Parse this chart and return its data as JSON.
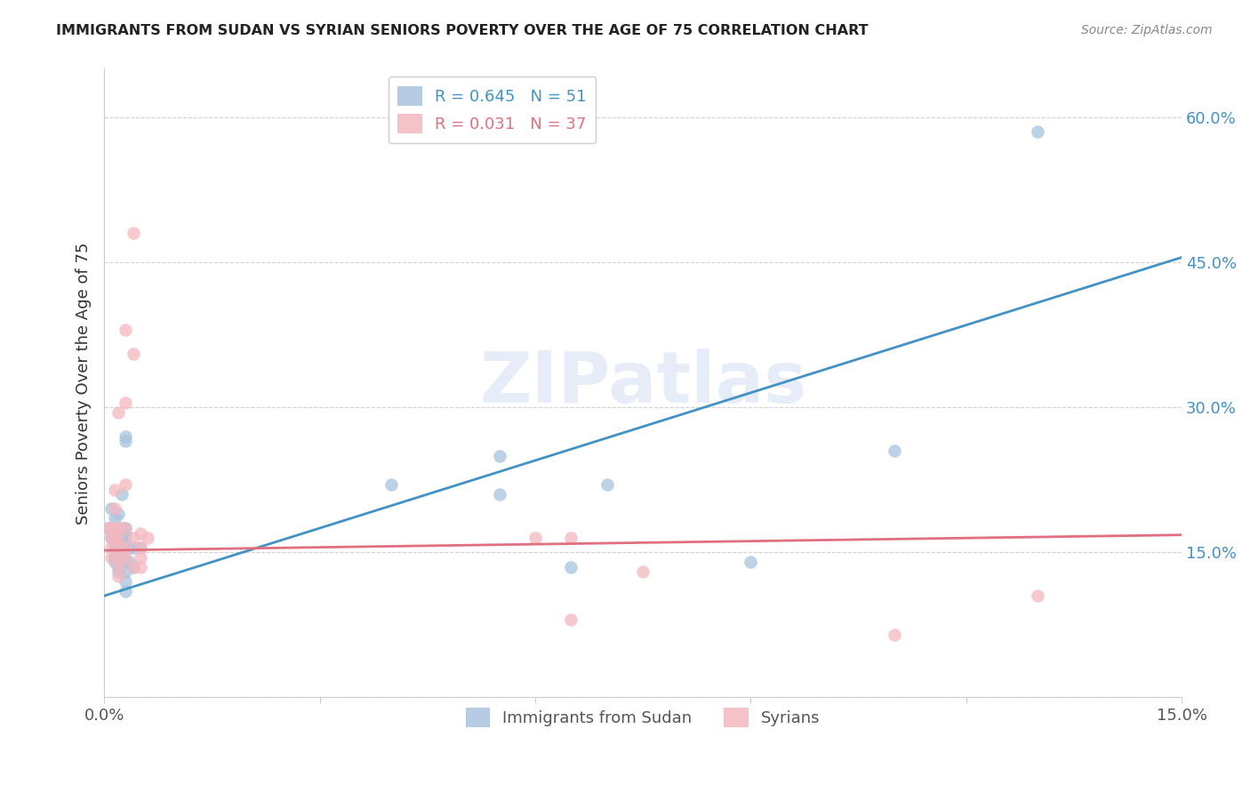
{
  "title": "IMMIGRANTS FROM SUDAN VS SYRIAN SENIORS POVERTY OVER THE AGE OF 75 CORRELATION CHART",
  "source": "Source: ZipAtlas.com",
  "ylabel": "Seniors Poverty Over the Age of 75",
  "x_min": 0.0,
  "x_max": 0.15,
  "y_min": 0.0,
  "y_max": 0.65,
  "yticks": [
    0.0,
    0.15,
    0.3,
    0.45,
    0.6
  ],
  "ytick_labels": [
    "",
    "15.0%",
    "30.0%",
    "45.0%",
    "60.0%"
  ],
  "xticks": [
    0.0,
    0.03,
    0.06,
    0.09,
    0.12,
    0.15
  ],
  "xtick_labels": [
    "0.0%",
    "",
    "",
    "",
    "",
    "15.0%"
  ],
  "watermark_text": "ZIPatlas",
  "sudan_color": "#a8c4e0",
  "syria_color": "#f4b8c0",
  "sudan_line_color": "#4292c6",
  "syria_line_color": "#e07080",
  "sudan_line": {
    "x0": 0.0,
    "y0": 0.105,
    "x1": 0.15,
    "y1": 0.455
  },
  "syria_line": {
    "x0": 0.0,
    "y0": 0.152,
    "x1": 0.15,
    "y1": 0.168
  },
  "sudan_points": [
    [
      0.0005,
      0.175
    ],
    [
      0.001,
      0.195
    ],
    [
      0.001,
      0.175
    ],
    [
      0.001,
      0.165
    ],
    [
      0.0015,
      0.185
    ],
    [
      0.0015,
      0.175
    ],
    [
      0.0015,
      0.165
    ],
    [
      0.0015,
      0.16
    ],
    [
      0.0015,
      0.155
    ],
    [
      0.0015,
      0.15
    ],
    [
      0.0015,
      0.145
    ],
    [
      0.0015,
      0.14
    ],
    [
      0.002,
      0.19
    ],
    [
      0.002,
      0.175
    ],
    [
      0.002,
      0.17
    ],
    [
      0.002,
      0.165
    ],
    [
      0.002,
      0.16
    ],
    [
      0.002,
      0.155
    ],
    [
      0.002,
      0.15
    ],
    [
      0.002,
      0.145
    ],
    [
      0.002,
      0.135
    ],
    [
      0.002,
      0.13
    ],
    [
      0.0025,
      0.21
    ],
    [
      0.0025,
      0.175
    ],
    [
      0.0025,
      0.165
    ],
    [
      0.0025,
      0.155
    ],
    [
      0.0025,
      0.15
    ],
    [
      0.0025,
      0.145
    ],
    [
      0.003,
      0.27
    ],
    [
      0.003,
      0.265
    ],
    [
      0.003,
      0.175
    ],
    [
      0.003,
      0.17
    ],
    [
      0.003,
      0.165
    ],
    [
      0.003,
      0.155
    ],
    [
      0.003,
      0.14
    ],
    [
      0.003,
      0.13
    ],
    [
      0.003,
      0.12
    ],
    [
      0.003,
      0.11
    ],
    [
      0.0035,
      0.155
    ],
    [
      0.0035,
      0.14
    ],
    [
      0.004,
      0.155
    ],
    [
      0.004,
      0.135
    ],
    [
      0.005,
      0.155
    ],
    [
      0.04,
      0.22
    ],
    [
      0.055,
      0.25
    ],
    [
      0.055,
      0.21
    ],
    [
      0.07,
      0.22
    ],
    [
      0.11,
      0.255
    ],
    [
      0.13,
      0.585
    ],
    [
      0.065,
      0.135
    ],
    [
      0.09,
      0.14
    ]
  ],
  "syria_points": [
    [
      0.0005,
      0.175
    ],
    [
      0.001,
      0.175
    ],
    [
      0.001,
      0.165
    ],
    [
      0.001,
      0.155
    ],
    [
      0.001,
      0.145
    ],
    [
      0.0015,
      0.215
    ],
    [
      0.0015,
      0.195
    ],
    [
      0.0015,
      0.175
    ],
    [
      0.0015,
      0.165
    ],
    [
      0.002,
      0.295
    ],
    [
      0.002,
      0.175
    ],
    [
      0.002,
      0.165
    ],
    [
      0.002,
      0.155
    ],
    [
      0.002,
      0.145
    ],
    [
      0.002,
      0.135
    ],
    [
      0.002,
      0.125
    ],
    [
      0.003,
      0.38
    ],
    [
      0.003,
      0.305
    ],
    [
      0.003,
      0.22
    ],
    [
      0.003,
      0.175
    ],
    [
      0.003,
      0.155
    ],
    [
      0.003,
      0.145
    ],
    [
      0.004,
      0.48
    ],
    [
      0.004,
      0.355
    ],
    [
      0.004,
      0.165
    ],
    [
      0.004,
      0.135
    ],
    [
      0.005,
      0.17
    ],
    [
      0.005,
      0.155
    ],
    [
      0.005,
      0.145
    ],
    [
      0.005,
      0.135
    ],
    [
      0.006,
      0.165
    ],
    [
      0.06,
      0.165
    ],
    [
      0.065,
      0.165
    ],
    [
      0.075,
      0.13
    ],
    [
      0.065,
      0.08
    ],
    [
      0.11,
      0.065
    ],
    [
      0.13,
      0.105
    ]
  ]
}
